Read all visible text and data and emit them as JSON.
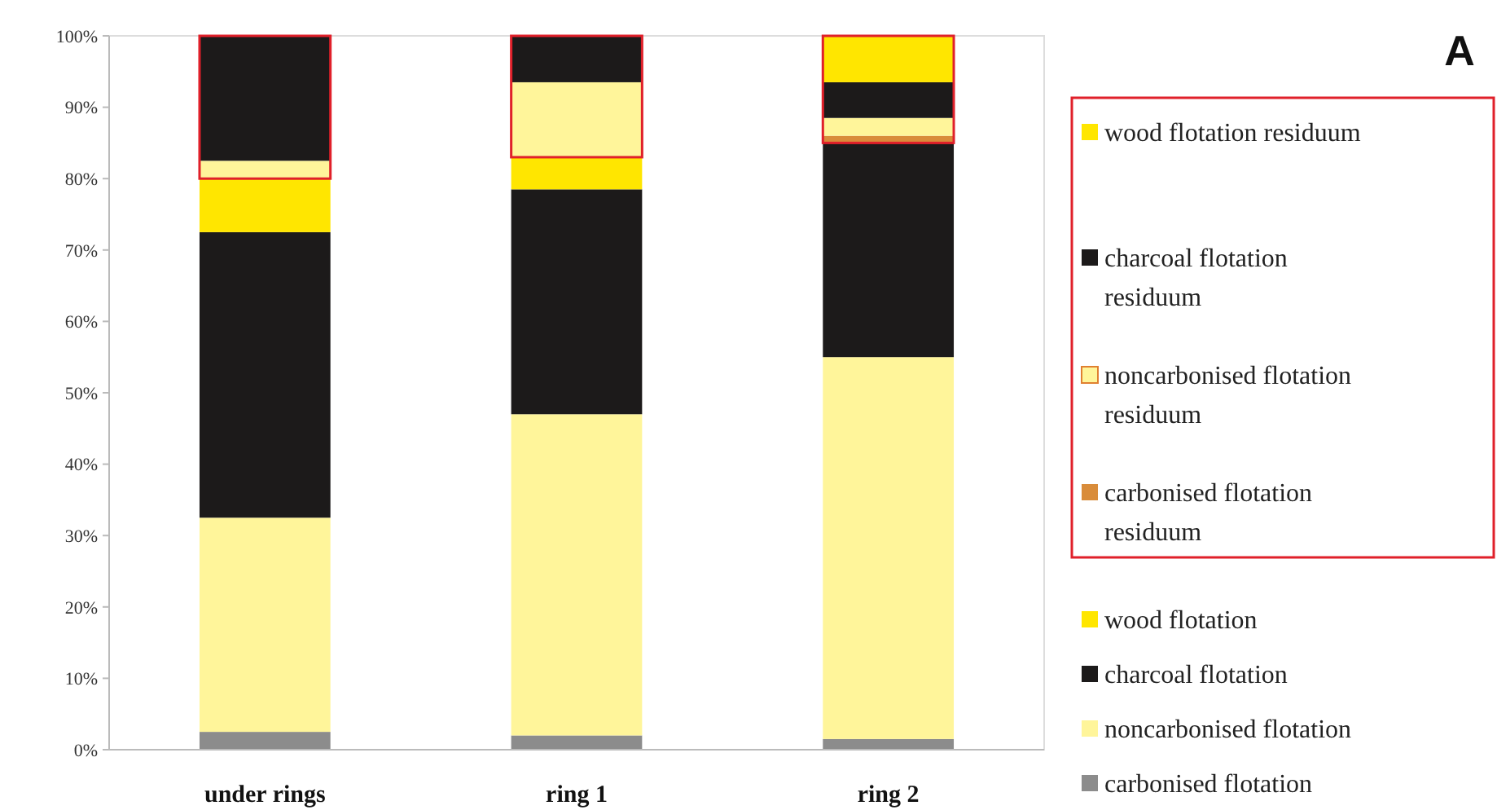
{
  "chart_data": {
    "type": "bar",
    "title": "A",
    "stacked": true,
    "legend": "right",
    "grid": false,
    "categories": [
      "under rings",
      "ring 1",
      "ring 2"
    ],
    "ylim": [
      0,
      100
    ],
    "yticks": [
      {
        "value": 0,
        "label": "0%"
      },
      {
        "value": 10,
        "label": "10%"
      },
      {
        "value": 20,
        "label": "20%"
      },
      {
        "value": 30,
        "label": "30%"
      },
      {
        "value": 40,
        "label": "40%"
      },
      {
        "value": 50,
        "label": "50%"
      },
      {
        "value": 60,
        "label": "60%"
      },
      {
        "value": 70,
        "label": "70%"
      },
      {
        "value": 80,
        "label": "80%"
      },
      {
        "value": 90,
        "label": "90%"
      },
      {
        "value": 100,
        "label": "100%"
      }
    ],
    "series": [
      {
        "name": "carbonised flotation",
        "color": "#8c8c8c",
        "values": [
          2.5,
          2,
          1.5
        ]
      },
      {
        "name": "noncarbonised flotation",
        "color": "#fff59a",
        "values": [
          30,
          45,
          53.5
        ]
      },
      {
        "name": "charcoal flotation",
        "color": "#1c1a1a",
        "values": [
          40,
          31.5,
          30
        ]
      },
      {
        "name": "wood flotation",
        "color": "#ffe600",
        "values": [
          7.5,
          4.5,
          0
        ]
      },
      {
        "name": "carbonised flotation residuum",
        "color": "#d98c3a",
        "values": [
          0,
          0,
          1
        ]
      },
      {
        "name": "noncarbonised flotation residuum",
        "color": "#fff59a",
        "values": [
          2.5,
          10.5,
          2.5
        ]
      },
      {
        "name": "charcoal flotation residuum",
        "color": "#1c1a1a",
        "values": [
          17.5,
          6.5,
          5
        ]
      },
      {
        "name": "wood flotation residuum",
        "color": "#ffe600",
        "values": [
          0,
          0,
          6.5
        ]
      }
    ]
  }
}
